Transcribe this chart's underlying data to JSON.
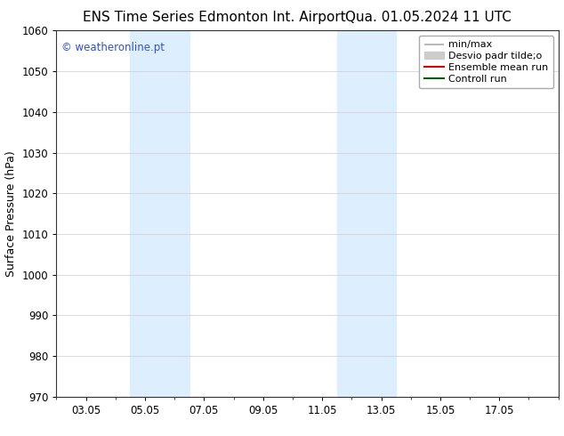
{
  "title_left": "ENS Time Series Edmonton Int. Airport",
  "title_right": "Qua. 01.05.2024 11 UTC",
  "ylabel": "Surface Pressure (hPa)",
  "ylim": [
    970,
    1060
  ],
  "yticks": [
    970,
    980,
    990,
    1000,
    1010,
    1020,
    1030,
    1040,
    1050,
    1060
  ],
  "xtick_labels": [
    "03.05",
    "05.05",
    "07.05",
    "09.05",
    "11.05",
    "13.05",
    "15.05",
    "17.05"
  ],
  "xtick_positions": [
    2,
    4,
    6,
    8,
    10,
    12,
    14,
    16
  ],
  "xmin": 1,
  "xmax": 18,
  "shaded_bands": [
    {
      "x_start": 3.5,
      "x_end": 5.5,
      "color": "#ddeeff"
    },
    {
      "x_start": 10.5,
      "x_end": 12.5,
      "color": "#ddeeff"
    }
  ],
  "watermark_text": "© weatheronline.pt",
  "watermark_color": "#3355bb",
  "legend_entries": [
    {
      "label": "min/max",
      "color": "#aaaaaa",
      "lw": 1.2
    },
    {
      "label": "Desvio padr tilde;o",
      "color": "#cccccc",
      "lw": 7
    },
    {
      "label": "Ensemble mean run",
      "color": "#dd0000",
      "lw": 1.5
    },
    {
      "label": "Controll run",
      "color": "#006600",
      "lw": 1.5
    }
  ],
  "bg_color": "#ffffff",
  "grid_color": "#cccccc",
  "title_fontsize": 11,
  "tick_fontsize": 8.5,
  "ylabel_fontsize": 9,
  "watermark_fontsize": 8.5,
  "legend_fontsize": 8
}
